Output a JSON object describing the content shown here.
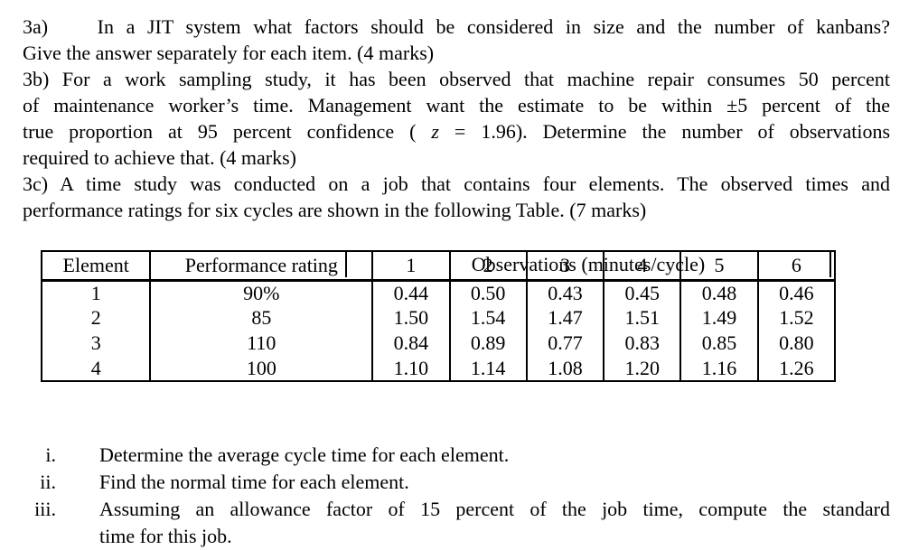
{
  "q3a": {
    "line1": "3a)    In a JIT system what factors should be considered in size and the number of kanbans?",
    "line2": "Give the answer separately for each item. (4 marks)"
  },
  "q3b": {
    "line1": "3b) For a work sampling study, it has been observed that machine repair consumes 50 percent",
    "line2": "of maintenance worker’s time. Management want the estimate to be within ±5 percent of the",
    "line3_pre": "true proportion at 95 percent confidence ( ",
    "line3_var": "z",
    "line3_post": " = 1.96). Determine the number of observations",
    "line4": "required to achieve that. (4 marks)"
  },
  "q3c": {
    "line1": "3c) A time study was conducted on a job that contains four elements. The observed times and",
    "line2": "performance ratings for six cycles are shown in the following Table. (7 marks)"
  },
  "table": {
    "span_header": "Observations (minutes/cycle)",
    "col_headers": [
      "Element",
      "Performance rating",
      "1",
      "2",
      "3",
      "4",
      "5",
      "6"
    ],
    "rows": [
      {
        "element": "1",
        "rating": "90%",
        "obs": [
          "0.44",
          "0.50",
          "0.43",
          "0.45",
          "0.48",
          "0.46"
        ]
      },
      {
        "element": "2",
        "rating": "85",
        "obs": [
          "1.50",
          "1.54",
          "1.47",
          "1.51",
          "1.49",
          "1.52"
        ]
      },
      {
        "element": "3",
        "rating": "110",
        "obs": [
          "0.84",
          "0.89",
          "0.77",
          "0.83",
          "0.85",
          "0.80"
        ]
      },
      {
        "element": "4",
        "rating": "100",
        "obs": [
          "1.10",
          "1.14",
          "1.08",
          "1.20",
          "1.16",
          "1.26"
        ]
      }
    ]
  },
  "tasks": [
    {
      "marker": "i.",
      "line1": "Determine the average cycle time for each element."
    },
    {
      "marker": "ii.",
      "line1": "Find the normal time for each element."
    },
    {
      "marker": "iii.",
      "line1": "Assuming an allowance factor of 15 percent of the job time, compute the standard",
      "line2": "time for this job."
    }
  ],
  "colors": {
    "text": "#000000",
    "background": "#ffffff",
    "border": "#000000"
  }
}
